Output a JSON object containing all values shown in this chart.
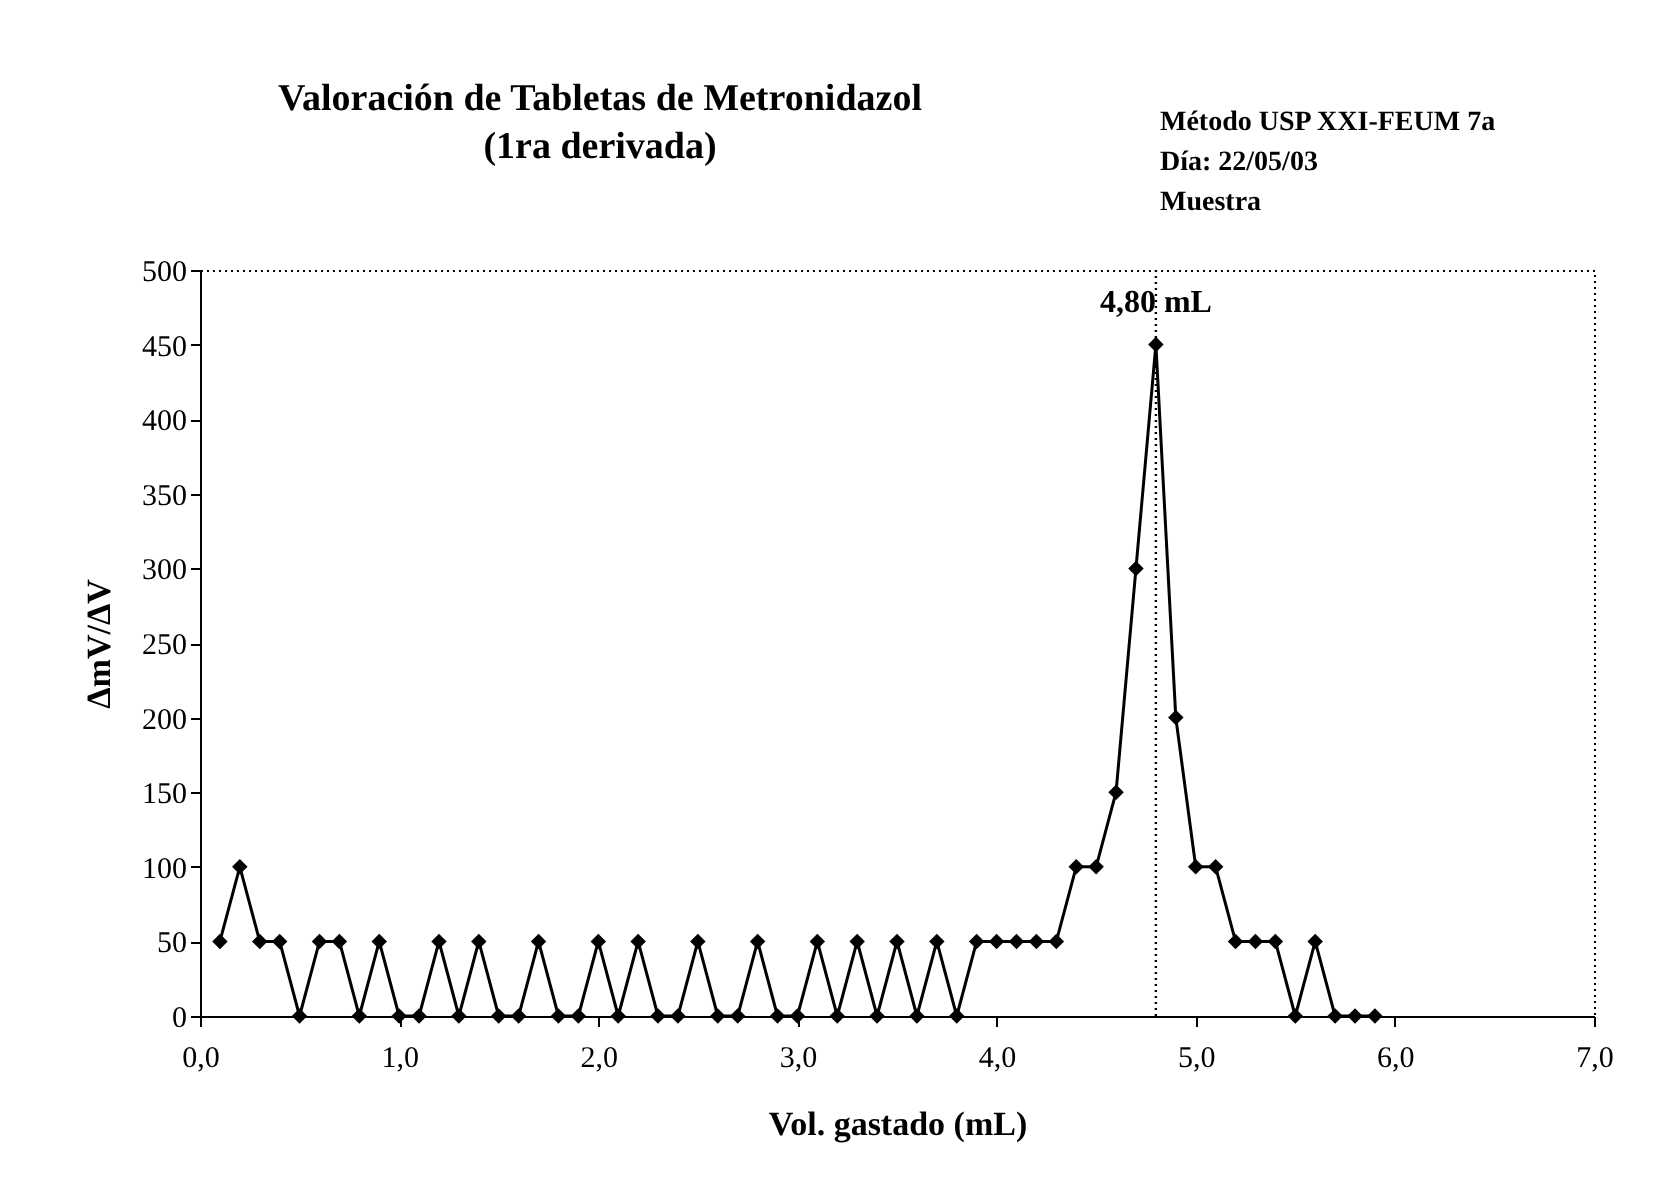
{
  "chart_data": {
    "type": "line",
    "title": "Valoración de Tabletas de Metronidazol",
    "subtitle": "(1ra derivada)",
    "xlabel": "Vol. gastado (mL)",
    "ylabel": "ΔmV/ΔV",
    "annotations": [
      "Método USP XXI-FEUM 7a",
      "Día: 22/05/03",
      "Muestra"
    ],
    "x": [
      0.1,
      0.2,
      0.3,
      0.4,
      0.5,
      0.6,
      0.7,
      0.8,
      0.9,
      1.0,
      1.1,
      1.2,
      1.3,
      1.4,
      1.5,
      1.6,
      1.7,
      1.8,
      1.9,
      2.0,
      2.1,
      2.2,
      2.3,
      2.4,
      2.5,
      2.6,
      2.7,
      2.8,
      2.9,
      3.0,
      3.1,
      3.2,
      3.3,
      3.4,
      3.5,
      3.6,
      3.7,
      3.8,
      3.9,
      4.0,
      4.1,
      4.2,
      4.3,
      4.4,
      4.5,
      4.6,
      4.7,
      4.8,
      4.9,
      5.0,
      5.1,
      5.2,
      5.3,
      5.4,
      5.5,
      5.6,
      5.7,
      5.8,
      5.9
    ],
    "series": [
      {
        "color": "#000000",
        "values": [
          50,
          100,
          50,
          50,
          0,
          50,
          50,
          0,
          50,
          0,
          0,
          50,
          0,
          50,
          0,
          0,
          50,
          0,
          0,
          50,
          0,
          50,
          0,
          0,
          50,
          0,
          0,
          50,
          0,
          0,
          50,
          0,
          50,
          0,
          50,
          0,
          50,
          0,
          50,
          50,
          50,
          50,
          50,
          100,
          100,
          150,
          300,
          450,
          200,
          100,
          100,
          50,
          50,
          50,
          0,
          50,
          0,
          0,
          0
        ]
      }
    ],
    "xlim": [
      0,
      7
    ],
    "ylim": [
      0,
      500
    ],
    "xticks": [
      {
        "value": 0,
        "label": "0,0"
      },
      {
        "value": 1,
        "label": "1,0"
      },
      {
        "value": 2,
        "label": "2,0"
      },
      {
        "value": 3,
        "label": "3,0"
      },
      {
        "value": 4,
        "label": "4,0"
      },
      {
        "value": 5,
        "label": "5,0"
      },
      {
        "value": 6,
        "label": "6,0"
      },
      {
        "value": 7,
        "label": "7,0"
      }
    ],
    "yticks": [
      0,
      50,
      100,
      150,
      200,
      250,
      300,
      350,
      400,
      450,
      500
    ],
    "ref_lines": [
      {
        "axis": "x",
        "value": 4.8,
        "label": "4,80 mL",
        "color": "#000000",
        "line_style": "dotted"
      }
    ],
    "grid": false,
    "marker": "diamond",
    "line_style": "solid"
  }
}
